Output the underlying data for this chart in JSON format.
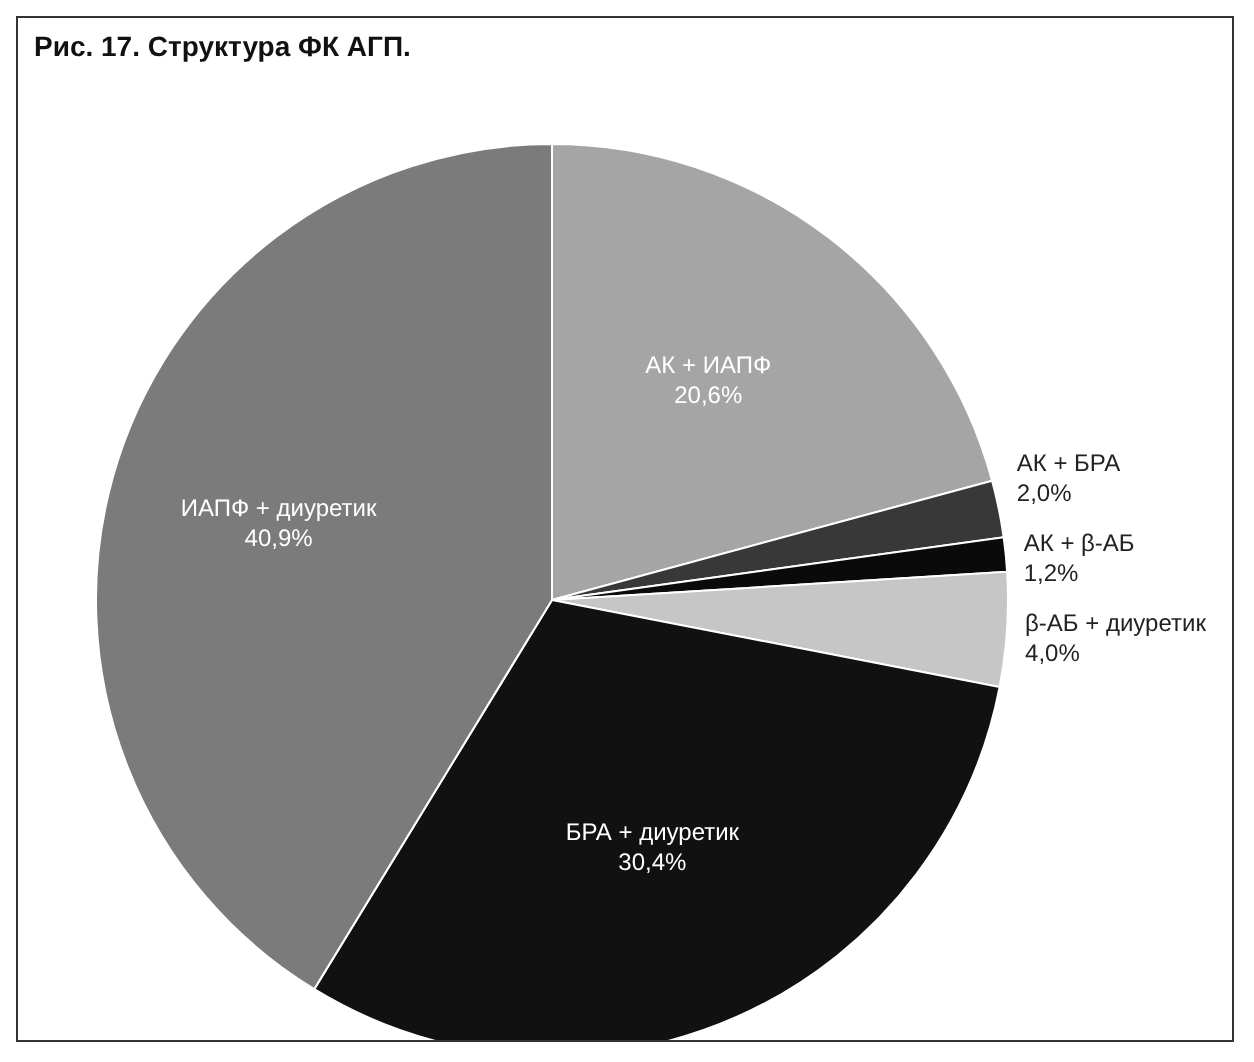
{
  "chart_data": {
    "type": "pie",
    "title": "Рис. 17. Структура ФК АГП.",
    "categories": [
      "АК + ИАПФ",
      "АК + БРА",
      "АК + β-АБ",
      "β-АБ + диуретик",
      "БРА + диуретик",
      "ИАПФ + диуретик"
    ],
    "values": [
      20.6,
      2.0,
      1.2,
      4.0,
      30.4,
      40.9
    ],
    "value_labels": [
      "20,6%",
      "2,0%",
      "1,2%",
      "4,0%",
      "30,4%",
      "40,9%"
    ],
    "colors": [
      "#a5a5a5",
      "#383838",
      "#0a0a0a",
      "#c6c6c6",
      "#111111",
      "#7b7b7b"
    ]
  }
}
